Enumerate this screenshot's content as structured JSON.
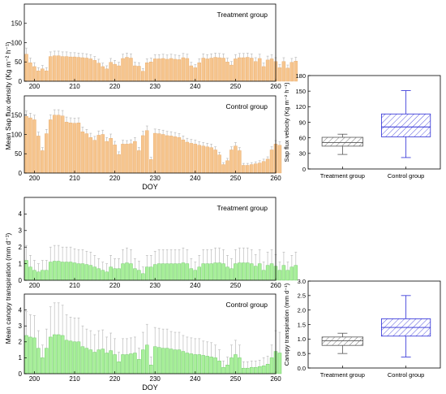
{
  "colors": {
    "sap_bar": "#f6c58e",
    "sap_bar_edge": "#e8a866",
    "transp_bar": "#a8ef9a",
    "transp_bar_edge": "#63c55a",
    "error_bar": "#bdbdbd",
    "treatment_box": "#555555",
    "control_box": "#2b2bd6",
    "axis": "#000000"
  },
  "chart_data": [
    {
      "id": "sap-treatment",
      "type": "bar",
      "panel_label": "Treatment group",
      "x_start": 198,
      "xlim": [
        197.5,
        260
      ],
      "ylim": [
        0,
        200
      ],
      "xticks": [
        200,
        210,
        220,
        230,
        240,
        250,
        260
      ],
      "yticks": [
        0,
        50,
        100,
        150
      ],
      "values": [
        70,
        48,
        38,
        27,
        32,
        27,
        64,
        66,
        66,
        64,
        64,
        63,
        63,
        62,
        61,
        60,
        58,
        54,
        47,
        38,
        32,
        49,
        44,
        40,
        59,
        62,
        60,
        40,
        39,
        26,
        48,
        50,
        58,
        58,
        59,
        57,
        59,
        57,
        56,
        61,
        59,
        40,
        35,
        48,
        60,
        58,
        60,
        62,
        61,
        60,
        50,
        42,
        58,
        61,
        61,
        62,
        60,
        51,
        59,
        38,
        55,
        58,
        51,
        35,
        51,
        34,
        49,
        52
      ],
      "errors": [
        16,
        12,
        10,
        8,
        9,
        8,
        12,
        12,
        12,
        12,
        12,
        11,
        11,
        11,
        11,
        11,
        11,
        10,
        10,
        9,
        8,
        10,
        10,
        9,
        11,
        11,
        11,
        9,
        9,
        7,
        10,
        10,
        11,
        11,
        11,
        11,
        11,
        11,
        11,
        11,
        11,
        9,
        8,
        10,
        11,
        11,
        11,
        11,
        11,
        11,
        10,
        9,
        11,
        11,
        11,
        11,
        11,
        10,
        11,
        9,
        10,
        11,
        10,
        8,
        10,
        8,
        10,
        10
      ]
    },
    {
      "id": "sap-control",
      "type": "bar",
      "panel_label": "Control group",
      "x_start": 198,
      "xlim": [
        197.5,
        260
      ],
      "ylim": [
        0,
        200
      ],
      "xticks": [
        200,
        210,
        220,
        230,
        240,
        250,
        260
      ],
      "yticks": [
        0,
        50,
        100,
        150
      ],
      "xlabel": "DOY",
      "values": [
        147,
        143,
        138,
        96,
        58,
        102,
        138,
        150,
        150,
        148,
        132,
        130,
        129,
        130,
        107,
        102,
        92,
        85,
        98,
        100,
        82,
        90,
        73,
        48,
        75,
        75,
        76,
        82,
        58,
        97,
        110,
        35,
        103,
        102,
        100,
        97,
        96,
        94,
        92,
        86,
        80,
        77,
        75,
        72,
        70,
        68,
        66,
        60,
        47,
        22,
        32,
        60,
        70,
        58,
        20,
        20,
        22,
        24,
        26,
        30,
        36,
        60,
        75,
        72
      ],
      "errors": [
        14,
        12,
        12,
        10,
        8,
        11,
        13,
        14,
        14,
        14,
        13,
        13,
        13,
        13,
        12,
        11,
        11,
        10,
        11,
        11,
        10,
        11,
        9,
        7,
        10,
        9,
        10,
        10,
        8,
        11,
        12,
        6,
        11,
        11,
        11,
        11,
        11,
        11,
        10,
        10,
        10,
        10,
        10,
        9,
        9,
        9,
        9,
        8,
        7,
        5,
        6,
        8,
        9,
        8,
        5,
        5,
        5,
        5,
        6,
        6,
        6,
        8,
        9,
        9
      ]
    },
    {
      "id": "sap-box",
      "type": "box",
      "ylabel": "Sap flux velocity (Kg m⁻² h⁻¹)",
      "ylim": [
        0,
        180
      ],
      "yticks": [
        0,
        30,
        60,
        90,
        120,
        150,
        180
      ],
      "categories": [
        "Treatment group",
        "Control group"
      ],
      "boxes": [
        {
          "name": "Treatment group",
          "whisker_low": 28,
          "q1": 44,
          "median": 51,
          "q3": 61,
          "whisker_high": 67
        },
        {
          "name": "Control group",
          "whisker_low": 22,
          "q1": 62,
          "median": 81,
          "q3": 106,
          "whisker_high": 151
        }
      ]
    },
    {
      "id": "transp-treatment",
      "type": "bar",
      "panel_label": "Treatment group",
      "x_start": 198,
      "xlim": [
        197.5,
        260
      ],
      "ylim": [
        0,
        5
      ],
      "xticks": [
        200,
        210,
        220,
        230,
        240,
        250,
        260
      ],
      "yticks": [
        0,
        1,
        2,
        3,
        4
      ],
      "values": [
        1.2,
        0.8,
        0.6,
        0.5,
        0.6,
        0.6,
        1.1,
        1.15,
        1.15,
        1.1,
        1.1,
        1.1,
        1.05,
        1.0,
        1.0,
        0.95,
        0.9,
        0.8,
        0.7,
        0.6,
        0.5,
        0.8,
        0.7,
        0.7,
        1.0,
        1.05,
        1.0,
        0.7,
        0.6,
        0.4,
        0.8,
        0.8,
        0.95,
        1.0,
        1.0,
        1.0,
        1.0,
        1.0,
        1.0,
        1.05,
        1.0,
        0.7,
        0.6,
        0.8,
        1.0,
        1.0,
        1.0,
        1.05,
        1.05,
        1.0,
        0.8,
        0.7,
        1.0,
        1.05,
        1.05,
        1.05,
        1.0,
        0.85,
        1.0,
        0.6,
        0.9,
        1.0,
        0.85,
        0.6,
        0.9,
        0.6,
        0.8,
        0.9
      ],
      "errors": [
        0.9,
        0.7,
        0.6,
        0.5,
        0.6,
        0.6,
        0.9,
        0.95,
        0.95,
        0.9,
        0.9,
        0.9,
        0.85,
        0.85,
        0.85,
        0.8,
        0.8,
        0.7,
        0.6,
        0.5,
        0.5,
        0.7,
        0.6,
        0.6,
        0.85,
        0.9,
        0.85,
        0.6,
        0.55,
        0.4,
        0.7,
        0.7,
        0.8,
        0.85,
        0.85,
        0.85,
        0.85,
        0.85,
        0.85,
        0.9,
        0.85,
        0.6,
        0.5,
        0.7,
        0.85,
        0.85,
        0.85,
        0.9,
        0.9,
        0.85,
        0.7,
        0.6,
        0.85,
        0.9,
        0.9,
        0.9,
        0.85,
        0.7,
        0.85,
        0.5,
        0.8,
        0.85,
        0.7,
        0.5,
        0.8,
        0.5,
        0.7,
        0.8
      ]
    },
    {
      "id": "transp-control",
      "type": "bar",
      "panel_label": "Control group",
      "x_start": 198,
      "xlim": [
        197.5,
        260
      ],
      "ylim": [
        0,
        5
      ],
      "xticks": [
        200,
        210,
        220,
        230,
        240,
        250,
        260
      ],
      "yticks": [
        0,
        1,
        2,
        3,
        4
      ],
      "xlabel": "DOY",
      "values": [
        2.4,
        2.3,
        2.25,
        1.6,
        1.0,
        1.6,
        2.3,
        2.45,
        2.45,
        2.4,
        2.1,
        2.05,
        2.0,
        2.0,
        1.7,
        1.6,
        1.5,
        1.35,
        1.5,
        1.55,
        1.3,
        1.45,
        1.2,
        0.75,
        1.2,
        1.2,
        1.25,
        1.3,
        0.9,
        1.5,
        1.8,
        0.55,
        1.7,
        1.65,
        1.6,
        1.6,
        1.55,
        1.5,
        1.5,
        1.4,
        1.3,
        1.25,
        1.2,
        1.2,
        1.15,
        1.1,
        1.05,
        1.0,
        0.8,
        0.4,
        0.55,
        1.0,
        1.2,
        1.0,
        0.35,
        0.35,
        0.4,
        0.4,
        0.45,
        0.5,
        0.6,
        1.0,
        1.4,
        1.3
      ],
      "errors": [
        1.5,
        1.4,
        1.4,
        1.1,
        0.8,
        1.2,
        1.9,
        2.0,
        2.0,
        1.9,
        1.6,
        1.5,
        1.5,
        1.5,
        1.3,
        1.2,
        1.2,
        1.1,
        1.2,
        1.2,
        1.0,
        1.1,
        1.0,
        0.6,
        1.0,
        1.0,
        1.0,
        1.0,
        0.7,
        1.1,
        1.3,
        0.5,
        1.2,
        1.2,
        1.2,
        1.2,
        1.1,
        1.1,
        1.1,
        1.0,
        1.0,
        1.0,
        1.0,
        1.0,
        0.9,
        0.9,
        0.9,
        0.8,
        0.7,
        0.4,
        0.5,
        0.8,
        0.9,
        0.8,
        0.4,
        0.4,
        0.4,
        0.4,
        0.4,
        0.5,
        0.5,
        0.8,
        1.3,
        1.3
      ]
    },
    {
      "id": "transp-box",
      "type": "box",
      "ylabel": "Canopy transpiration (mm d⁻¹)",
      "ylim": [
        0,
        3.0
      ],
      "yticks": [
        0.0,
        0.5,
        1.0,
        1.5,
        2.0,
        2.5,
        3.0
      ],
      "categories": [
        "Treatment group",
        "Control group"
      ],
      "boxes": [
        {
          "name": "Treatment group",
          "whisker_low": 0.5,
          "q1": 0.78,
          "median": 0.94,
          "q3": 1.07,
          "whisker_high": 1.2
        },
        {
          "name": "Control group",
          "whisker_low": 0.38,
          "q1": 1.1,
          "median": 1.4,
          "q3": 1.7,
          "whisker_high": 2.5
        }
      ]
    }
  ],
  "shared_labels": {
    "sap_ylabel": "Mean Sap flux density (Kg m⁻² h⁻¹)",
    "transp_ylabel": "Mean canopy transpiration (mm d⁻¹)"
  }
}
